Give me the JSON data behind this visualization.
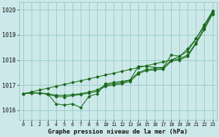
{
  "title": "Graphe pression niveau de la mer (hPa)",
  "bg_color": "#cce8e8",
  "grid_color": "#99cccc",
  "line_color": "#1a6b1a",
  "x_labels": [
    0,
    1,
    2,
    3,
    4,
    5,
    6,
    7,
    8,
    9,
    10,
    11,
    12,
    13,
    14,
    15,
    16,
    17,
    18,
    19,
    20,
    21,
    22,
    23
  ],
  "ylim": [
    1015.6,
    1020.3
  ],
  "yticks": [
    1016,
    1017,
    1018,
    1019,
    1020
  ],
  "s_straight": [
    1016.65,
    1016.72,
    1016.8,
    1016.87,
    1016.95,
    1017.02,
    1017.1,
    1017.17,
    1017.25,
    1017.32,
    1017.4,
    1017.47,
    1017.55,
    1017.62,
    1017.7,
    1017.77,
    1017.85,
    1017.92,
    1018.0,
    1018.15,
    1018.45,
    1018.85,
    1019.35,
    1019.95
  ],
  "s_zigzag": [
    1016.65,
    1016.7,
    1016.68,
    1016.65,
    1016.25,
    1016.2,
    1016.25,
    1016.1,
    1016.55,
    1016.65,
    1017.05,
    1017.1,
    1017.15,
    1017.2,
    1017.75,
    1017.75,
    1017.7,
    1017.7,
    1018.2,
    1018.15,
    1018.35,
    1018.85,
    1019.4,
    1019.95
  ],
  "s_mid1": [
    1016.65,
    1016.68,
    1016.68,
    1016.65,
    1016.6,
    1016.58,
    1016.62,
    1016.65,
    1016.72,
    1016.8,
    1017.0,
    1017.05,
    1017.1,
    1017.2,
    1017.5,
    1017.62,
    1017.65,
    1017.68,
    1018.0,
    1018.05,
    1018.2,
    1018.7,
    1019.28,
    1019.88
  ],
  "s_mid2": [
    1016.65,
    1016.68,
    1016.68,
    1016.62,
    1016.55,
    1016.52,
    1016.58,
    1016.62,
    1016.68,
    1016.75,
    1016.95,
    1017.0,
    1017.05,
    1017.15,
    1017.45,
    1017.58,
    1017.6,
    1017.63,
    1017.95,
    1018.0,
    1018.15,
    1018.65,
    1019.22,
    1019.82
  ]
}
